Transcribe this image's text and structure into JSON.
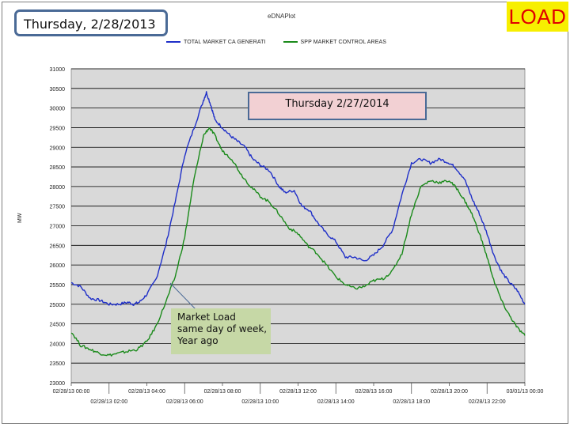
{
  "header": {
    "date_label": "Thursday, 2/28/2013",
    "load_badge": "LOAD",
    "plot_source": "eDNAPlot"
  },
  "overlay": {
    "comparison_label": "Thursday 2/27/2014",
    "annotation": [
      "Market Load",
      "same day  of week,",
      "Year ago"
    ]
  },
  "colors": {
    "series_blue": "#1f2fc8",
    "series_green": "#1a8a1a",
    "plot_bg": "#d9d9d9",
    "badge_bg": "#f7ef00",
    "badge_text": "#e00000"
  },
  "chart_data": {
    "type": "line",
    "ylabel": "MW",
    "ylim": [
      23000,
      31000
    ],
    "xlim": [
      0,
      24
    ],
    "y_ticks": [
      23000,
      23500,
      24000,
      24500,
      25000,
      25500,
      26000,
      26500,
      27000,
      27500,
      28000,
      28500,
      29000,
      29500,
      30000,
      30500,
      31000
    ],
    "x_ticks_top": [
      "02/28/13 00:00",
      "02/28/13 04:00",
      "02/28/13 08:00",
      "02/28/13 12:00",
      "02/28/13 16:00",
      "02/28/13 20:00",
      "03/01/13 00:00"
    ],
    "x_ticks_bottom": [
      "02/28/13 02:00",
      "02/28/13 06:00",
      "02/28/13 10:00",
      "02/28/13 14:00",
      "02/28/13 18:00",
      "02/28/13 22:00"
    ],
    "grid": true,
    "legend_position": "top",
    "series": [
      {
        "name": "TOTAL MARKET CA GENERATI",
        "color": "#1f2fc8",
        "x": [
          0,
          0.5,
          1,
          1.5,
          2,
          2.5,
          3,
          3.3,
          3.6,
          4,
          4.5,
          5,
          5.5,
          6,
          6.5,
          7,
          7.15,
          7.4,
          7.6,
          8,
          8.4,
          8.8,
          9.2,
          9.6,
          10,
          10.5,
          11,
          11.3,
          11.8,
          12.2,
          12.6,
          13,
          13.5,
          14,
          14.5,
          15,
          15.5,
          16,
          16.5,
          17,
          17.5,
          18,
          18.5,
          19,
          19.5,
          20,
          20.3,
          20.8,
          21.2,
          21.6,
          22,
          22.4,
          22.8,
          23.2,
          23.6,
          24
        ],
        "values": [
          25550,
          25450,
          25150,
          25100,
          25000,
          25000,
          25050,
          25000,
          25050,
          25250,
          25650,
          26500,
          27600,
          28800,
          29500,
          30200,
          30400,
          30050,
          29700,
          29500,
          29300,
          29150,
          29000,
          28700,
          28550,
          28400,
          28000,
          27850,
          27900,
          27500,
          27400,
          27100,
          26800,
          26600,
          26200,
          26200,
          26100,
          26250,
          26500,
          26900,
          27800,
          28600,
          28700,
          28600,
          28700,
          28600,
          28500,
          28200,
          27700,
          27300,
          26800,
          26200,
          25800,
          25550,
          25350,
          25000
        ]
      },
      {
        "name": "SPP MARKET CONTROL AREAS",
        "color": "#1a8a1a",
        "x": [
          0,
          0.5,
          1,
          1.5,
          2,
          2.5,
          3,
          3.5,
          4,
          4.5,
          5,
          5.5,
          6,
          6.5,
          7,
          7.3,
          7.6,
          8,
          8.5,
          9,
          9.5,
          10,
          10.5,
          11,
          11.5,
          12,
          12.5,
          13,
          13.5,
          14,
          14.5,
          15,
          15.5,
          16,
          16.5,
          17,
          17.5,
          18,
          18.5,
          19,
          19.5,
          20,
          20.4,
          20.8,
          21.2,
          21.6,
          22,
          22.4,
          22.8,
          23.2,
          23.6,
          24
        ],
        "values": [
          24300,
          23950,
          23850,
          23750,
          23700,
          23750,
          23800,
          23850,
          24050,
          24450,
          25050,
          25700,
          26700,
          28200,
          29300,
          29500,
          29300,
          28900,
          28700,
          28300,
          28000,
          27750,
          27600,
          27300,
          26950,
          26800,
          26500,
          26300,
          26000,
          25700,
          25500,
          25400,
          25450,
          25600,
          25650,
          25850,
          26300,
          27300,
          28000,
          28150,
          28100,
          28150,
          27950,
          27650,
          27300,
          26800,
          26200,
          25550,
          25050,
          24700,
          24400,
          24200
        ]
      }
    ]
  }
}
